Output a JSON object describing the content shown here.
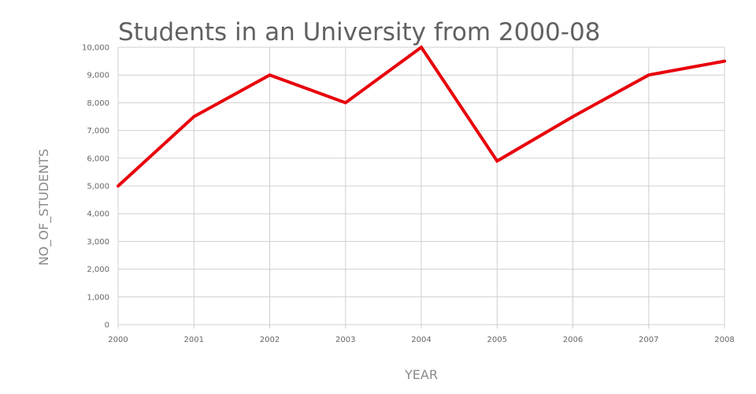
{
  "chart_data": {
    "type": "line",
    "title": "Students in an University from 2000-08",
    "xlabel": "YEAR",
    "ylabel": "NO_OF_STUDENTS",
    "categories": [
      "2000",
      "2001",
      "2002",
      "2003",
      "2004",
      "2005",
      "2006",
      "2007",
      "2008"
    ],
    "series": [
      {
        "values": [
          5000,
          7500,
          9000,
          8000,
          10000,
          5900,
          7500,
          9000,
          9500
        ],
        "color": "#e8000b"
      }
    ],
    "ylim": [
      0,
      10000
    ],
    "yticks": [
      "0",
      "1,000",
      "2,000",
      "3,000",
      "4,000",
      "5,000",
      "6,000",
      "7,000",
      "8,000",
      "9,000",
      "10,000"
    ],
    "grid": true,
    "legend": "none"
  }
}
